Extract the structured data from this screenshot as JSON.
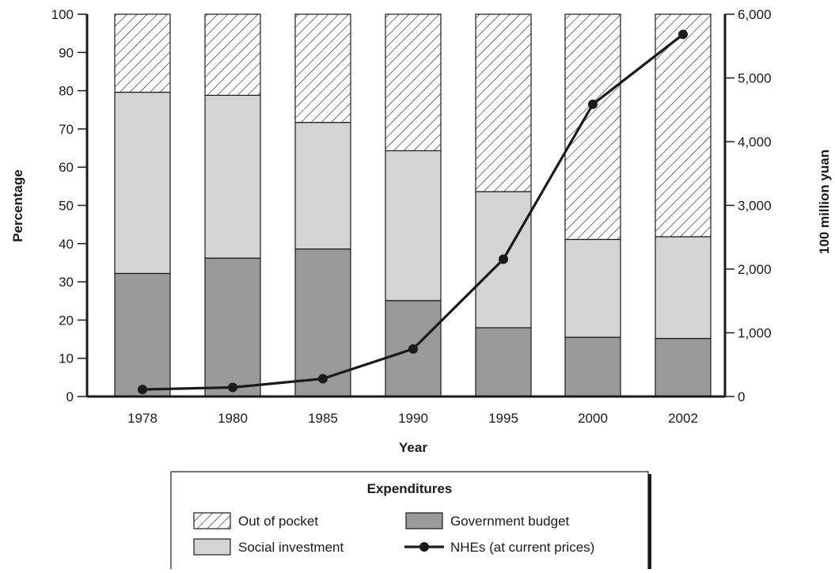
{
  "chart_data": {
    "type": "bar",
    "stacked": true,
    "categories": [
      "1978",
      "1980",
      "1985",
      "1990",
      "1995",
      "2000",
      "2002"
    ],
    "xlabel": "Year",
    "ylabel": "Percentage",
    "ylim": [
      0,
      100
    ],
    "yticks": [
      "0",
      "10",
      "20",
      "30",
      "40",
      "50",
      "60",
      "70",
      "80",
      "90",
      "100"
    ],
    "y2label": "100 million yuan",
    "y2lim": [
      0,
      6000
    ],
    "y2ticks": [
      "0",
      "1,000",
      "2,000",
      "3,000",
      "4,000",
      "5,000",
      "6,000"
    ],
    "series": [
      {
        "name": "Government budget",
        "kind": "bar",
        "color": "#9a9a9a",
        "values": [
          32.2,
          36.2,
          38.6,
          25.1,
          18.0,
          15.5,
          15.2
        ]
      },
      {
        "name": "Social investment",
        "kind": "bar",
        "color": "#d4d4d4",
        "values": [
          47.4,
          42.6,
          33.1,
          39.2,
          35.6,
          25.6,
          26.6
        ]
      },
      {
        "name": "Out of pocket",
        "kind": "bar",
        "pattern": "hatch",
        "values": [
          20.4,
          21.2,
          28.3,
          35.7,
          46.4,
          58.9,
          58.2
        ]
      },
      {
        "name": "NHEs (at current prices)",
        "kind": "line",
        "axis": "right",
        "color": "#1a1a1a",
        "values": [
          110,
          143,
          279,
          747,
          2155,
          4587,
          5684
        ]
      }
    ],
    "grid": false,
    "legend": {
      "title": "Expenditures",
      "placement": "bottom-center",
      "items": [
        "Out of pocket",
        "Government budget",
        "Social investment",
        "NHEs (at current prices)"
      ]
    }
  }
}
